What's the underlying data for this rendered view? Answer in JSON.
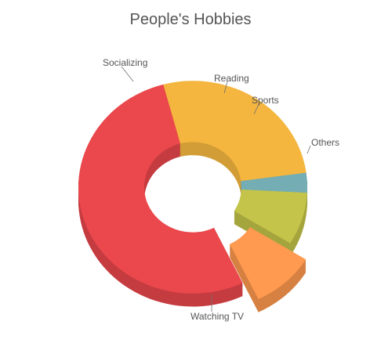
{
  "chart_data": {
    "type": "pie",
    "variant": "3d-donut",
    "title": "People's Hobbies",
    "categories": [
      "Socializing",
      "Reading",
      "Sports",
      "Others",
      "Watching TV"
    ],
    "values": [
      27,
      3,
      8,
      9,
      53
    ],
    "colors": [
      "#F4B63F",
      "#74AEB4",
      "#C4C44A",
      "#FF9A50",
      "#EA484C"
    ],
    "exploded": [
      "Others"
    ],
    "legend": "none",
    "data_labels": "outside-with-leader-lines"
  }
}
